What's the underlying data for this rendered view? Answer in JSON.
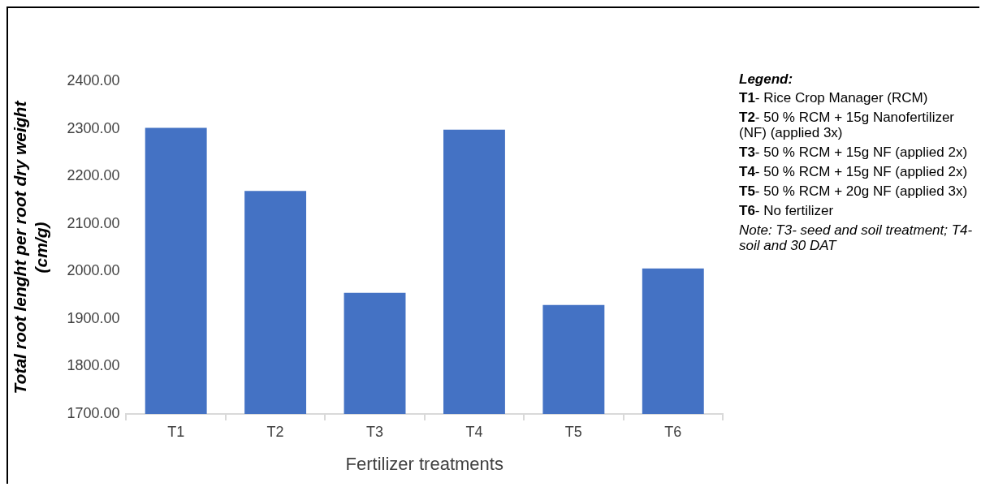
{
  "chart_data": {
    "type": "bar",
    "xlabel": "Fertilizer treatments",
    "ylabel": "Total root lenght per root dry weight (cm/g)",
    "categories": [
      "T1",
      "T2",
      "T3",
      "T4",
      "T5",
      "T6"
    ],
    "values": [
      2302,
      2169,
      1955,
      2298,
      1929,
      2006
    ],
    "color": "#4472c4",
    "ylim": [
      1700,
      2400
    ],
    "yticks": [
      {
        "value": 1700,
        "label": "1700.00"
      },
      {
        "value": 1800,
        "label": "1800.00"
      },
      {
        "value": 1900,
        "label": "1900.00"
      },
      {
        "value": 2000,
        "label": "2000.00"
      },
      {
        "value": 2100,
        "label": "2100.00"
      },
      {
        "value": 2200,
        "label": "2200.00"
      },
      {
        "value": 2300,
        "label": "2300.00"
      },
      {
        "value": 2400,
        "label": "2400.00"
      }
    ],
    "grid": false,
    "legend": false,
    "annotations": [
      "Legend:",
      "T1- Rice Crop Manager (RCM)",
      "T2- 50 % RCM + 15g Nanofertilizer (NF) (applied 3x)",
      "T3- 50 % RCM + 15g NF (applied 2x)",
      "T4- 50 % RCM + 15g NF (applied 2x)",
      "T5- 50 % RCM + 20g NF (applied 3x)",
      "T6- No fertilizer",
      "Note: T3- seed and soil treatment; T4- soil and 30 DAT"
    ]
  }
}
